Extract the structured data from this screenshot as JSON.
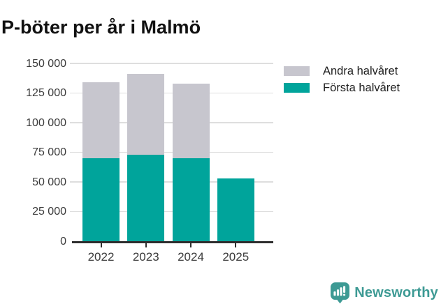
{
  "title": "P-böter per år i Malmö",
  "legend": [
    {
      "label": "Andra halvåret",
      "color": "#c7c6ce"
    },
    {
      "label": "Första halvåret",
      "color": "#00a49b"
    }
  ],
  "footer": {
    "brand": "Newsworthy",
    "brand_color": "#3d9a94",
    "logo_icon": "bar-chart-speech-bubble-icon"
  },
  "colors": {
    "first_half": "#00a49b",
    "second_half": "#c7c6ce",
    "gridline": "#dedede",
    "axis": "#2e2e2e",
    "text": "#3a3a3a"
  },
  "chart_data": {
    "type": "bar",
    "stacked": true,
    "title": "P-böter per år i Malmö",
    "categories": [
      "2022",
      "2023",
      "2024",
      "2025"
    ],
    "series": [
      {
        "name": "Första halvåret",
        "color": "#00a49b",
        "values": [
          70000,
          73000,
          70000,
          53000
        ]
      },
      {
        "name": "Andra halvåret",
        "color": "#c7c6ce",
        "values": [
          64000,
          68000,
          63000,
          0
        ]
      }
    ],
    "totals": [
      134000,
      141000,
      133000,
      53000
    ],
    "xlabel": "",
    "ylabel": "",
    "ylim": [
      0,
      150000
    ],
    "ytick_step": 25000,
    "yticks": [
      "0",
      "25 000",
      "50 000",
      "75 000",
      "100 000",
      "125 000",
      "150 000"
    ],
    "grid": true,
    "legend_position": "right-top"
  }
}
